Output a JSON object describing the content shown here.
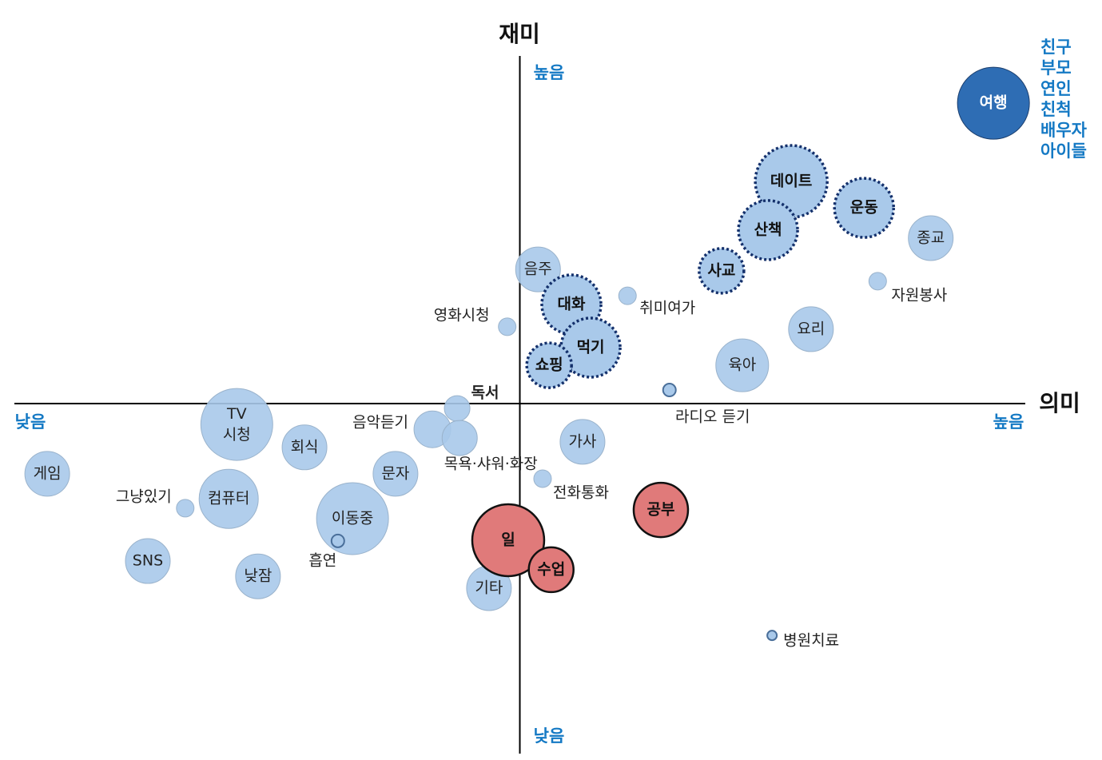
{
  "chart_data": {
    "type": "bubble",
    "x_label": "의미",
    "y_label": "재미",
    "x_low": "낮음",
    "x_high": "높음",
    "y_low": "낮음",
    "y_high": "높음",
    "annotation": [
      "친구",
      "부모",
      "연인",
      "친척",
      "배우자",
      "아이들"
    ],
    "annotation_color": "#1479c4",
    "xlim": [
      -100,
      100
    ],
    "ylim": [
      -100,
      100
    ],
    "groups": [
      {
        "fill": "#a9c9ea",
        "stroke": "#9ab3cc",
        "dash": false,
        "bold": false,
        "text_color": "#222222",
        "points": [
          {
            "label": "음주",
            "x": 3.6,
            "y": 38.6,
            "size": 28
          },
          {
            "label": "영화시청",
            "x": -2.5,
            "y": 22.1,
            "size": 11
          },
          {
            "label": "취미여가",
            "x": 21.3,
            "y": 31.0,
            "size": 11
          },
          {
            "label": "종교",
            "x": 81.3,
            "y": 47.6,
            "size": 28
          },
          {
            "label": "자원봉사",
            "x": 70.8,
            "y": 35.2,
            "size": 11
          },
          {
            "label": "요리",
            "x": 57.6,
            "y": 21.4,
            "size": 28
          },
          {
            "label": "육아",
            "x": 44.0,
            "y": 11.0,
            "size": 33
          },
          {
            "label": "라디오 듣기",
            "x": 29.6,
            "y": 3.9,
            "size": 8
          },
          {
            "label": "독서",
            "x": -12.4,
            "y": -1.4,
            "size": 16
          },
          {
            "label": "음악듣기",
            "x": -17.3,
            "y": -7.4,
            "size": 23
          },
          {
            "label": "목욕·샤워·화장",
            "x": -11.9,
            "y": -9.9,
            "size": 22
          },
          {
            "label": "가사",
            "x": 12.4,
            "y": -11.0,
            "size": 28
          },
          {
            "label": "전화통화",
            "x": 4.5,
            "y": -21.6,
            "size": 11
          },
          {
            "label": "TV 시청",
            "x": -56.0,
            "y": -6.0,
            "size": 45
          },
          {
            "label": "회식",
            "x": -42.6,
            "y": -12.6,
            "size": 28
          },
          {
            "label": "게임",
            "x": -93.5,
            "y": -20.2,
            "size": 28
          },
          {
            "label": "문자",
            "x": -24.6,
            "y": -20.2,
            "size": 28
          },
          {
            "label": "그냥있기",
            "x": -66.2,
            "y": -30.1,
            "size": 11
          },
          {
            "label": "컴퓨터",
            "x": -57.6,
            "y": -27.4,
            "size": 37
          },
          {
            "label": "이동중",
            "x": -33.1,
            "y": -33.1,
            "size": 45
          },
          {
            "label": "흡연",
            "x": -36.0,
            "y": -39.5,
            "size": 8
          },
          {
            "label": "SNS",
            "x": -73.6,
            "y": -45.3,
            "size": 28
          },
          {
            "label": "낮잠",
            "x": -51.8,
            "y": -49.7,
            "size": 28
          },
          {
            "label": "기타",
            "x": -6.1,
            "y": -53.1,
            "size": 28
          },
          {
            "label": "병원치료",
            "x": 49.9,
            "y": -66.7,
            "size": 6
          }
        ]
      },
      {
        "fill": "#a9c9ea",
        "stroke": "#14306b",
        "dash": true,
        "bold": true,
        "text_color": "#111111",
        "points": [
          {
            "label": "데이트",
            "x": 53.7,
            "y": 63.9,
            "size": 45
          },
          {
            "label": "운동",
            "x": 68.1,
            "y": 56.3,
            "size": 37
          },
          {
            "label": "산책",
            "x": 49.1,
            "y": 49.9,
            "size": 37
          },
          {
            "label": "사교",
            "x": 39.9,
            "y": 38.2,
            "size": 28
          },
          {
            "label": "대화",
            "x": 10.2,
            "y": 28.5,
            "size": 37
          },
          {
            "label": "먹기",
            "x": 14.0,
            "y": 16.1,
            "size": 37
          },
          {
            "label": "쇼핑",
            "x": 5.8,
            "y": 11.0,
            "size": 28
          }
        ]
      },
      {
        "fill": "#2e6db4",
        "stroke": "#1c3f6e",
        "dash": false,
        "bold": true,
        "text_color": "#ffffff",
        "points": [
          {
            "label": "여행",
            "x": 93.7,
            "y": 86.4,
            "size": 45
          }
        ]
      },
      {
        "fill": "#e07a7a",
        "stroke": "#111111",
        "dash": false,
        "bold": true,
        "text_color": "#111111",
        "points": [
          {
            "label": "일",
            "x": -2.3,
            "y": -39.3,
            "size": 45
          },
          {
            "label": "수업",
            "x": 6.2,
            "y": -47.8,
            "size": 28
          },
          {
            "label": "공부",
            "x": 27.9,
            "y": -30.6,
            "size": 34
          }
        ]
      }
    ]
  }
}
